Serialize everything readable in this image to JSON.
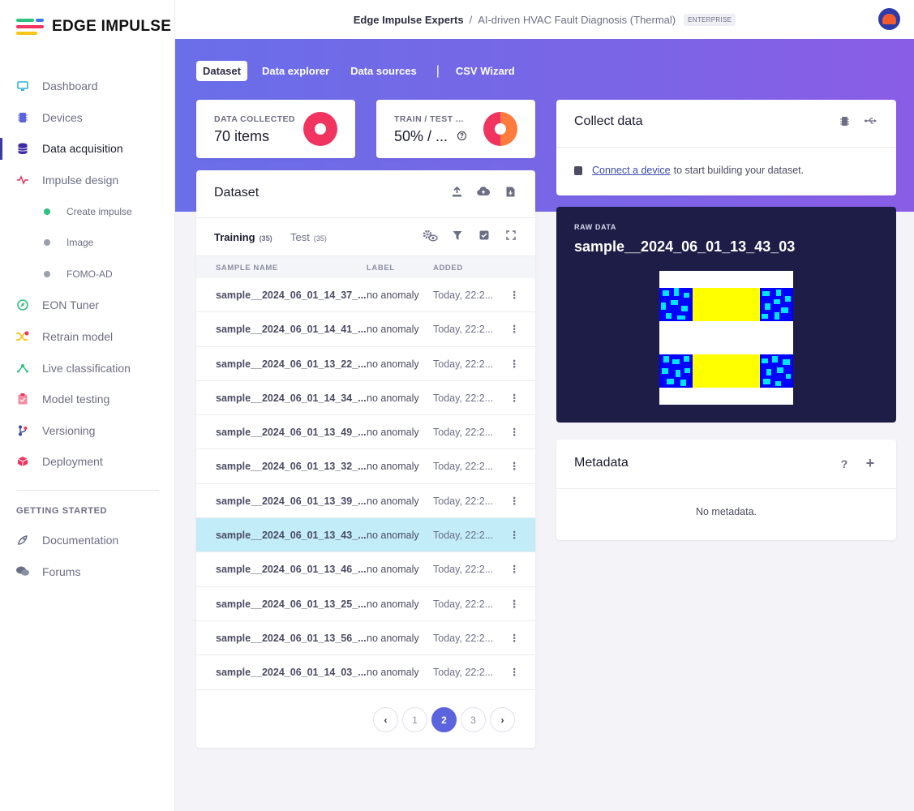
{
  "app": {
    "brand": "EDGE IMPULSE"
  },
  "sidebar": {
    "items": [
      {
        "label": "Dashboard",
        "icon": "monitor-icon"
      },
      {
        "label": "Devices",
        "icon": "chip-icon"
      },
      {
        "label": "Data acquisition",
        "icon": "database-icon"
      },
      {
        "label": "Impulse design",
        "icon": "pulse-icon"
      }
    ],
    "subitems": [
      {
        "label": "Create impulse",
        "state": "green"
      },
      {
        "label": "Image",
        "state": "gray"
      },
      {
        "label": "FOMO-AD",
        "state": "gray"
      }
    ],
    "items2": [
      {
        "label": "EON Tuner",
        "icon": "compass-icon"
      },
      {
        "label": "Retrain model",
        "icon": "shuffle-icon"
      },
      {
        "label": "Live classification",
        "icon": "network-icon"
      },
      {
        "label": "Model testing",
        "icon": "checklist-icon"
      },
      {
        "label": "Versioning",
        "icon": "branch-icon"
      },
      {
        "label": "Deployment",
        "icon": "cube-icon"
      }
    ],
    "section_title": "GETTING STARTED",
    "help_items": [
      {
        "label": "Documentation",
        "icon": "rocket-icon"
      },
      {
        "label": "Forums",
        "icon": "chat-icon"
      }
    ]
  },
  "topbar": {
    "owner": "Edge Impulse Experts",
    "separator": "/",
    "project": "AI-driven HVAC Fault Diagnosis (Thermal)",
    "badge": "ENTERPRISE"
  },
  "tabs": [
    "Dataset",
    "Data explorer",
    "Data sources",
    "CSV Wizard"
  ],
  "tab_divider": "|",
  "stats": {
    "collected_label": "DATA COLLECTED",
    "collected_value": "70 items",
    "split_label": "TRAIN / TEST ...",
    "split_value": "50% / ...",
    "help": "?"
  },
  "dataset": {
    "title": "Dataset",
    "training_label": "Training",
    "training_count": "(35)",
    "test_label": "Test",
    "test_count": "(35)",
    "columns": [
      "SAMPLE NAME",
      "LABEL",
      "ADDED"
    ],
    "rows": [
      {
        "name": "sample__2024_06_01_14_37_...",
        "label": "no anomaly",
        "added": "Today, 22:2..."
      },
      {
        "name": "sample__2024_06_01_14_41_...",
        "label": "no anomaly",
        "added": "Today, 22:2..."
      },
      {
        "name": "sample__2024_06_01_13_22_...",
        "label": "no anomaly",
        "added": "Today, 22:2..."
      },
      {
        "name": "sample__2024_06_01_14_34_...",
        "label": "no anomaly",
        "added": "Today, 22:2..."
      },
      {
        "name": "sample__2024_06_01_13_49_...",
        "label": "no anomaly",
        "added": "Today, 22:2..."
      },
      {
        "name": "sample__2024_06_01_13_32_...",
        "label": "no anomaly",
        "added": "Today, 22:2..."
      },
      {
        "name": "sample__2024_06_01_13_39_...",
        "label": "no anomaly",
        "added": "Today, 22:2..."
      },
      {
        "name": "sample__2024_06_01_13_43_...",
        "label": "no anomaly",
        "added": "Today, 22:2...",
        "selected": true
      },
      {
        "name": "sample__2024_06_01_13_46_...",
        "label": "no anomaly",
        "added": "Today, 22:2..."
      },
      {
        "name": "sample__2024_06_01_13_25_...",
        "label": "no anomaly",
        "added": "Today, 22:2..."
      },
      {
        "name": "sample__2024_06_01_13_56_...",
        "label": "no anomaly",
        "added": "Today, 22:2..."
      },
      {
        "name": "sample__2024_06_01_14_03_...",
        "label": "no anomaly",
        "added": "Today, 22:2..."
      }
    ],
    "kebab": "⋮",
    "pages": [
      "1",
      "2",
      "3"
    ],
    "current_page": "2",
    "prev": "‹",
    "next": "›"
  },
  "collect": {
    "title": "Collect data",
    "link": "Connect a device",
    "rest": "to start building your dataset."
  },
  "raw": {
    "label": "RAW DATA",
    "title": "sample__2024_06_01_13_43_03"
  },
  "metadata": {
    "title": "Metadata",
    "help": "?",
    "add": "+",
    "empty": "No metadata."
  },
  "colors": {
    "accent": "#5b63dd",
    "collected_donut": "#f0335f",
    "split_donut_a": "#f0335f",
    "split_donut_b": "#ff7a3d",
    "selected_row": "#c2ecf7"
  }
}
